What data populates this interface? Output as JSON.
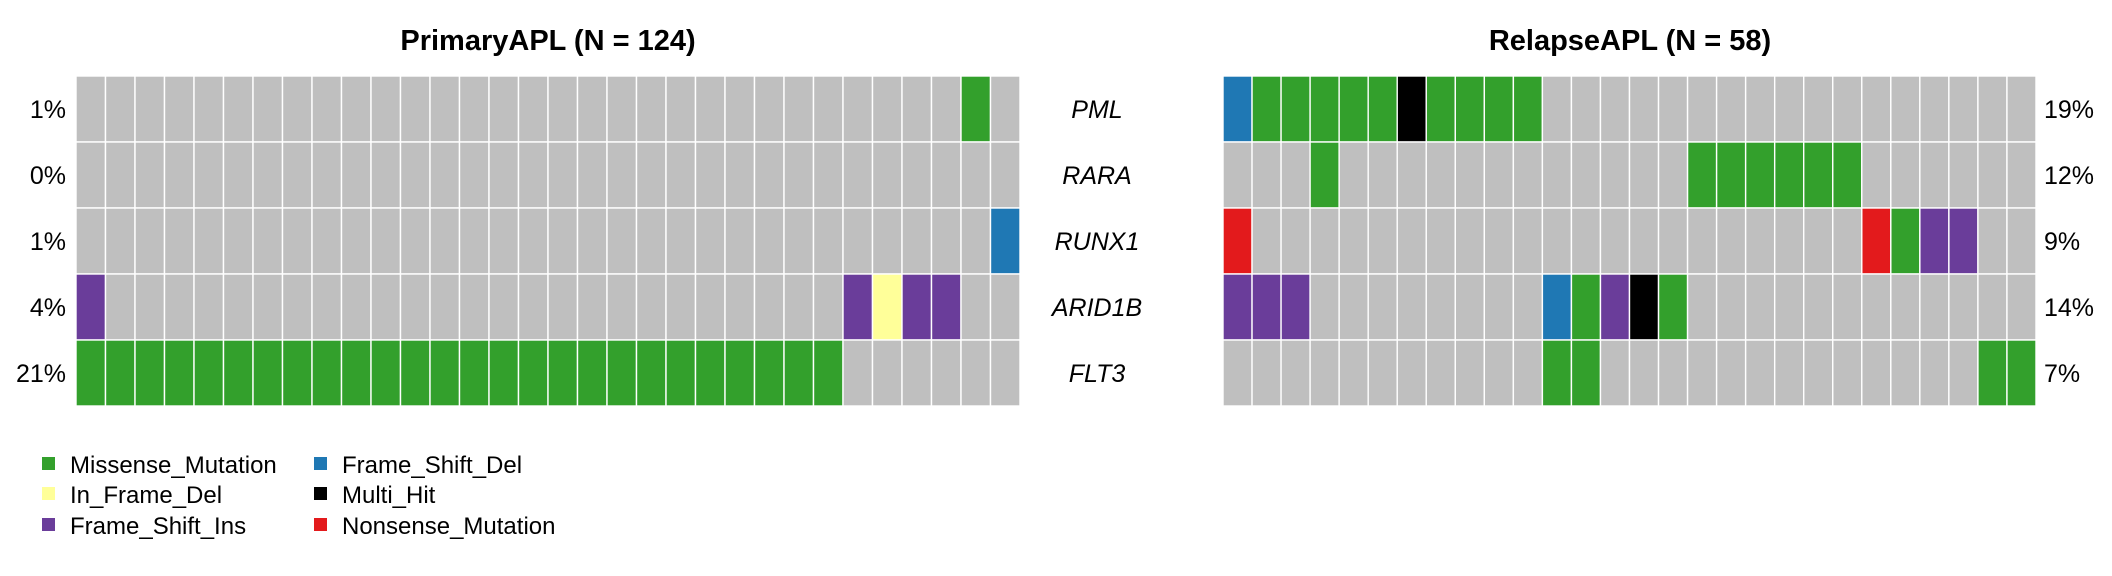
{
  "chart_data": {
    "type": "heatmap",
    "genes": [
      "PML",
      "RARA",
      "RUNX1",
      "ARID1B",
      "FLT3"
    ],
    "panels": [
      {
        "title": "PrimaryAPL (N = 124)",
        "percents": [
          "1%",
          "0%",
          "1%",
          "4%",
          "21%"
        ],
        "n_columns": 32,
        "rows": [
          [
            "",
            "",
            "",
            "",
            "",
            "",
            "",
            "",
            "",
            "",
            "",
            "",
            "",
            "",
            "",
            "",
            "",
            "",
            "",
            "",
            "",
            "",
            "",
            "",
            "",
            "",
            "",
            "",
            "",
            "",
            "Missense_Mutation",
            ""
          ],
          [
            "",
            "",
            "",
            "",
            "",
            "",
            "",
            "",
            "",
            "",
            "",
            "",
            "",
            "",
            "",
            "",
            "",
            "",
            "",
            "",
            "",
            "",
            "",
            "",
            "",
            "",
            "",
            "",
            "",
            "",
            "",
            ""
          ],
          [
            "",
            "",
            "",
            "",
            "",
            "",
            "",
            "",
            "",
            "",
            "",
            "",
            "",
            "",
            "",
            "",
            "",
            "",
            "",
            "",
            "",
            "",
            "",
            "",
            "",
            "",
            "",
            "",
            "",
            "",
            "",
            "Frame_Shift_Del"
          ],
          [
            "Frame_Shift_Ins",
            "",
            "",
            "",
            "",
            "",
            "",
            "",
            "",
            "",
            "",
            "",
            "",
            "",
            "",
            "",
            "",
            "",
            "",
            "",
            "",
            "",
            "",
            "",
            "",
            "",
            "Frame_Shift_Ins",
            "In_Frame_Del",
            "Frame_Shift_Ins",
            "Frame_Shift_Ins",
            "",
            ""
          ],
          [
            "Missense_Mutation",
            "Missense_Mutation",
            "Missense_Mutation",
            "Missense_Mutation",
            "Missense_Mutation",
            "Missense_Mutation",
            "Missense_Mutation",
            "Missense_Mutation",
            "Missense_Mutation",
            "Missense_Mutation",
            "Missense_Mutation",
            "Missense_Mutation",
            "Missense_Mutation",
            "Missense_Mutation",
            "Missense_Mutation",
            "Missense_Mutation",
            "Missense_Mutation",
            "Missense_Mutation",
            "Missense_Mutation",
            "Missense_Mutation",
            "Missense_Mutation",
            "Missense_Mutation",
            "Missense_Mutation",
            "Missense_Mutation",
            "Missense_Mutation",
            "Missense_Mutation",
            "",
            "",
            "",
            "",
            "",
            ""
          ]
        ]
      },
      {
        "title": "RelapseAPL (N = 58)",
        "percents": [
          "19%",
          "12%",
          "9%",
          "14%",
          "7%"
        ],
        "n_columns": 28,
        "rows": [
          [
            "Frame_Shift_Del",
            "Missense_Mutation",
            "Missense_Mutation",
            "Missense_Mutation",
            "Missense_Mutation",
            "Missense_Mutation",
            "Multi_Hit",
            "Missense_Mutation",
            "Missense_Mutation",
            "Missense_Mutation",
            "Missense_Mutation",
            "",
            "",
            "",
            "",
            "",
            "",
            "",
            "",
            "",
            "",
            "",
            "",
            "",
            "",
            "",
            "",
            ""
          ],
          [
            "",
            "",
            "",
            "Missense_Mutation",
            "",
            "",
            "",
            "",
            "",
            "",
            "",
            "",
            "",
            "",
            "",
            "",
            "Missense_Mutation",
            "Missense_Mutation",
            "Missense_Mutation",
            "Missense_Mutation",
            "Missense_Mutation",
            "Missense_Mutation",
            "",
            "",
            "",
            "",
            "",
            ""
          ],
          [
            "Nonsense_Mutation",
            "",
            "",
            "",
            "",
            "",
            "",
            "",
            "",
            "",
            "",
            "",
            "",
            "",
            "",
            "",
            "",
            "",
            "",
            "",
            "",
            "",
            "Nonsense_Mutation",
            "Missense_Mutation",
            "Frame_Shift_Ins",
            "Frame_Shift_Ins",
            "",
            ""
          ],
          [
            "Frame_Shift_Ins",
            "Frame_Shift_Ins",
            "Frame_Shift_Ins",
            "",
            "",
            "",
            "",
            "",
            "",
            "",
            "",
            "Frame_Shift_Del",
            "Missense_Mutation",
            "Frame_Shift_Ins",
            "Multi_Hit",
            "Missense_Mutation",
            "",
            "",
            "",
            "",
            "",
            "",
            "",
            "",
            "",
            "",
            "",
            ""
          ],
          [
            "",
            "",
            "",
            "",
            "",
            "",
            "",
            "",
            "",
            "",
            "",
            "Missense_Mutation",
            "Missense_Mutation",
            "",
            "",
            "",
            "",
            "",
            "",
            "",
            "",
            "",
            "",
            "",
            "",
            "",
            "Missense_Mutation",
            "Missense_Mutation"
          ]
        ]
      }
    ],
    "legend": [
      "Missense_Mutation",
      "In_Frame_Del",
      "Frame_Shift_Ins",
      "Frame_Shift_Del",
      "Multi_Hit",
      "Nonsense_Mutation"
    ],
    "colors": {
      "Missense_Mutation": "#33a02c",
      "In_Frame_Del": "#ffff99",
      "Frame_Shift_Ins": "#6a3d9a",
      "Frame_Shift_Del": "#1f78b4",
      "Multi_Hit": "#000000",
      "Nonsense_Mutation": "#e31a1c",
      "empty": "#bfbfbf"
    },
    "legend_placement": "bottom-left"
  }
}
